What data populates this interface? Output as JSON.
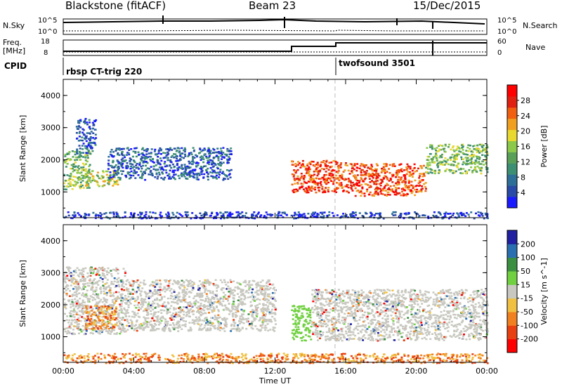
{
  "header": {
    "station": "Blackstone (fitACF)",
    "beam": "Beam 23",
    "date": "15/Dec/2015"
  },
  "top_panels": {
    "n_sky_label": "N.Sky",
    "n_search_label": "N.Search",
    "n_ticks": [
      "10^5",
      "10^0"
    ],
    "freq_label_1": "Freq.",
    "freq_label_2": "[MHz]",
    "freq_ticks": [
      "18",
      "8"
    ],
    "nave_label": "Nave",
    "nave_ticks": [
      "60",
      "0"
    ],
    "cpid_label": "CPID",
    "programs": [
      {
        "name": "rbsp CT-trig 220",
        "start_hour": 0
      },
      {
        "name": "twofsound 3501",
        "start_hour": 15.4
      }
    ]
  },
  "chart_data": [
    {
      "type": "heatmap",
      "name": "power-panel",
      "xlabel": "",
      "ylabel": "Slant Range [km]",
      "xlim": [
        0,
        24
      ],
      "ylim": [
        200,
        4500
      ],
      "yticks": [
        "1000",
        "2000",
        "3000",
        "4000"
      ],
      "colorbar": {
        "label": "Power [dB]",
        "ticks": [
          "4",
          "8",
          "12",
          "16",
          "20",
          "24",
          "28"
        ],
        "colors": [
          "#1a1aff",
          "#2a4aa8",
          "#2e6f98",
          "#3c8f72",
          "#5a9f58",
          "#8cc84a",
          "#e8d830",
          "#f0a020",
          "#f06010",
          "#e02010",
          "#ff0000"
        ]
      },
      "echo_regions": [
        {
          "t0": 0,
          "t1": 1.5,
          "r0": 1100,
          "r1": 2300,
          "level": 14
        },
        {
          "t0": 0.7,
          "t1": 1.8,
          "r0": 2200,
          "r1": 3300,
          "level": 6
        },
        {
          "t0": 1.2,
          "t1": 3.1,
          "r0": 1200,
          "r1": 1700,
          "level": 16
        },
        {
          "t0": 2.5,
          "t1": 9.5,
          "r0": 1400,
          "r1": 2400,
          "level": 6
        },
        {
          "t0": 0,
          "t1": 24,
          "r0": 200,
          "r1": 400,
          "level": 5
        },
        {
          "t0": 12.9,
          "t1": 16.5,
          "r0": 1000,
          "r1": 2000,
          "level": 22
        },
        {
          "t0": 16.5,
          "t1": 20.5,
          "r0": 900,
          "r1": 1900,
          "level": 22
        },
        {
          "t0": 20.5,
          "t1": 24,
          "r0": 1600,
          "r1": 2500,
          "level": 14
        }
      ]
    },
    {
      "type": "heatmap",
      "name": "velocity-panel",
      "xlabel": "Time UT",
      "ylabel": "Slant Range [km]",
      "xlim": [
        0,
        24
      ],
      "ylim": [
        200,
        4500
      ],
      "yticks": [
        "1000",
        "2000",
        "3000",
        "4000"
      ],
      "xticks": [
        "00:00",
        "04:00",
        "08:00",
        "12:00",
        "16:00",
        "20:00",
        "00:00"
      ],
      "colorbar": {
        "label": "Velocity [m s^-1]",
        "ticks": [
          "200",
          "100",
          "50",
          "15",
          "-15",
          "-50",
          "-100",
          "-200"
        ],
        "colors": [
          "#2020a0",
          "#2a6fb0",
          "#3a9040",
          "#70d040",
          "#c8c8c0",
          "#f0c040",
          "#f08020",
          "#e84010",
          "#ff0000"
        ]
      },
      "echo_regions": [
        {
          "t0": 0,
          "t1": 3.5,
          "r0": 1100,
          "r1": 3200,
          "level": 0
        },
        {
          "t0": 1.2,
          "t1": 3.0,
          "r0": 1250,
          "r1": 2000,
          "level": -60
        },
        {
          "t0": 3.5,
          "t1": 12,
          "r0": 1200,
          "r1": 2800,
          "level": 0
        },
        {
          "t0": 0,
          "t1": 24,
          "r0": 200,
          "r1": 500,
          "level": -40
        },
        {
          "t0": 12.9,
          "t1": 14,
          "r0": 900,
          "r1": 2000,
          "level": 40
        },
        {
          "t0": 14,
          "t1": 24,
          "r0": 900,
          "r1": 2500,
          "level": 0
        }
      ]
    }
  ]
}
